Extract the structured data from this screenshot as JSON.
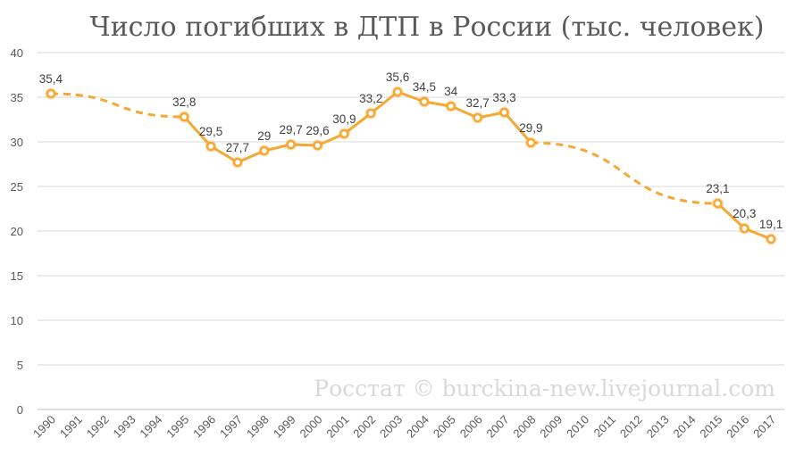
{
  "chart_data": {
    "type": "line",
    "title": "Число погибших в ДТП в России (тыс. человек)",
    "xlabel": "",
    "ylabel": "",
    "ylim": [
      0,
      40
    ],
    "yticks": [
      0,
      5,
      10,
      15,
      20,
      25,
      30,
      35,
      40
    ],
    "grid": true,
    "legend": "none",
    "categories": [
      "1990",
      "1991",
      "1992",
      "1993",
      "1994",
      "1995",
      "1996",
      "1997",
      "1998",
      "1999",
      "2000",
      "2001",
      "2002",
      "2003",
      "2004",
      "2005",
      "2006",
      "2007",
      "2008",
      "2009",
      "2010",
      "2011",
      "2012",
      "2013",
      "2014",
      "2015",
      "2016",
      "2017"
    ],
    "series": [
      {
        "values": [
          35.4,
          null,
          null,
          null,
          null,
          32.8,
          29.5,
          27.7,
          29,
          29.7,
          29.6,
          30.9,
          33.2,
          35.6,
          34.5,
          34,
          32.7,
          33.3,
          29.9,
          null,
          null,
          null,
          null,
          null,
          null,
          23.1,
          20.3,
          19.1
        ],
        "data_labels": [
          "35,4",
          "",
          "",
          "",
          "",
          "32,8",
          "29,5",
          "27,7",
          "29",
          "29,7",
          "29,6",
          "30,9",
          "33,2",
          "35,6",
          "34,5",
          "34",
          "32,7",
          "33,3",
          "29,9",
          "",
          "",
          "",
          "",
          "",
          "",
          "23,1",
          "20,3",
          "19,1"
        ],
        "color": "#f5a833",
        "gap_style": "dashed"
      }
    ],
    "watermark": "Росстат © burckina-new.livejournal.com"
  }
}
